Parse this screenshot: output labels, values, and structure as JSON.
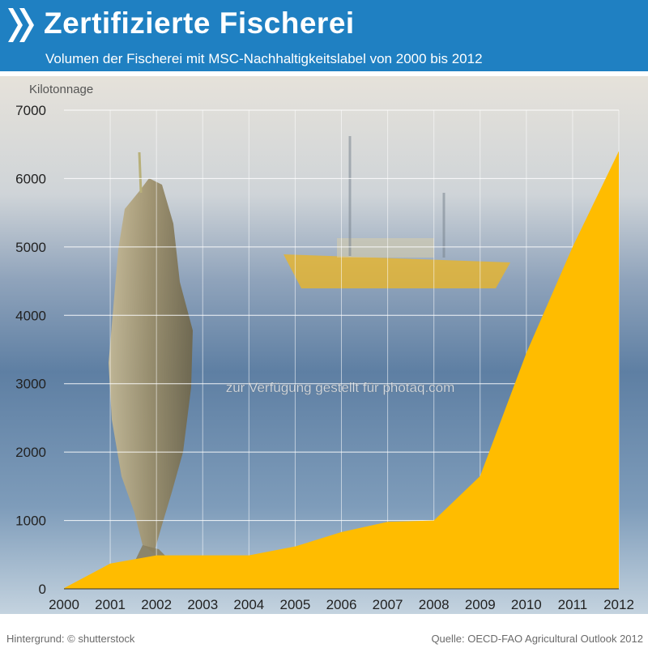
{
  "header": {
    "title": "Zertifizierte Fischerei",
    "subtitle": "Volumen der Fischerei mit MSC-Nachhaltigkeitslabel von 2000 bis 2012"
  },
  "watermark": "zur Verfügung gestellt für photaq.com",
  "footer": {
    "left": "Hintergrund: © shutterstock",
    "right": "Quelle: OECD-FAO Agricultural Outlook 2012"
  },
  "colors": {
    "header": "#1f80c2",
    "area": "#ffbc00",
    "plot_background": "#9fb1c5"
  },
  "chart_data": {
    "type": "area",
    "title": "Zertifizierte Fischerei",
    "subtitle": "Volumen der Fischerei mit MSC-Nachhaltigkeitslabel von 2000 bis 2012",
    "ylabel": "Kilotonnage",
    "xlabel": "",
    "x": [
      2000,
      2001,
      2002,
      2003,
      2004,
      2005,
      2006,
      2007,
      2008,
      2009,
      2010,
      2011,
      2012
    ],
    "series": [
      {
        "values": [
          10,
          370,
          490,
          490,
          490,
          620,
          830,
          980,
          1000,
          1650,
          3450,
          5000,
          6400
        ]
      }
    ],
    "ylim": [
      0,
      7000
    ],
    "yticks": [
      0,
      1000,
      2000,
      3000,
      4000,
      5000,
      6000,
      7000
    ],
    "grid": true,
    "legend": "none"
  }
}
